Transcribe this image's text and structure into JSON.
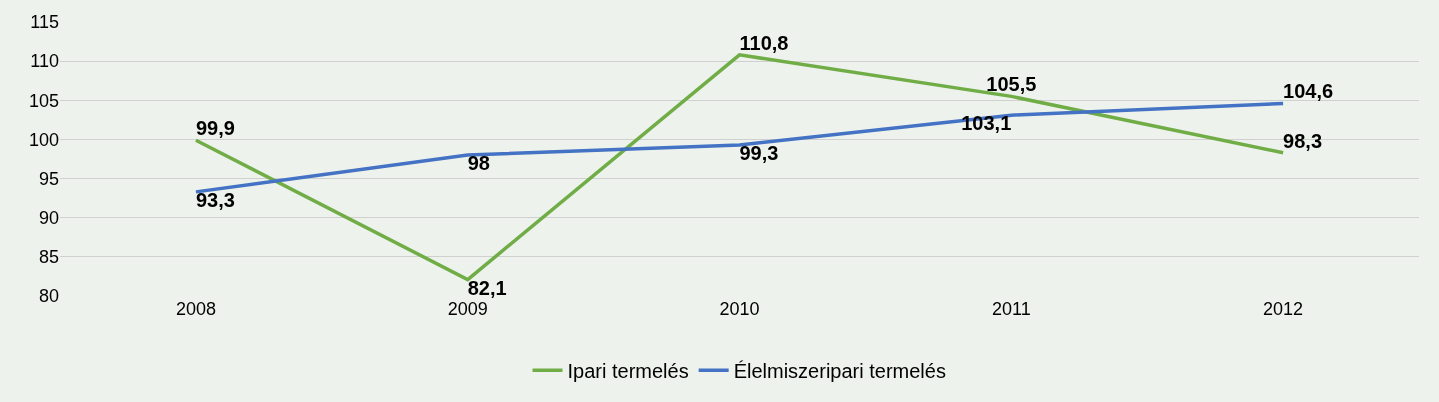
{
  "chart_data": {
    "type": "line",
    "categories": [
      "2008",
      "2009",
      "2010",
      "2011",
      "2012"
    ],
    "series": [
      {
        "name": "Ipari termelés",
        "color": "#70ad47",
        "values": [
          99.9,
          82.1,
          110.8,
          105.5,
          98.3
        ],
        "value_labels": [
          "99,9",
          "82,1",
          "110,8",
          "105,5",
          "98,3"
        ]
      },
      {
        "name": "Élelmiszeripari termelés",
        "color": "#4472c4",
        "values": [
          93.3,
          98,
          99.3,
          103.1,
          104.6
        ],
        "value_labels": [
          "93,3",
          "98",
          "99,3",
          "103,1",
          "104,6"
        ]
      }
    ],
    "ylim": [
      80,
      115
    ],
    "yticks": [
      80,
      85,
      90,
      95,
      100,
      105,
      110,
      115
    ],
    "grid": "y",
    "legend": "bottom",
    "marker": "none",
    "line_style": "solid"
  }
}
